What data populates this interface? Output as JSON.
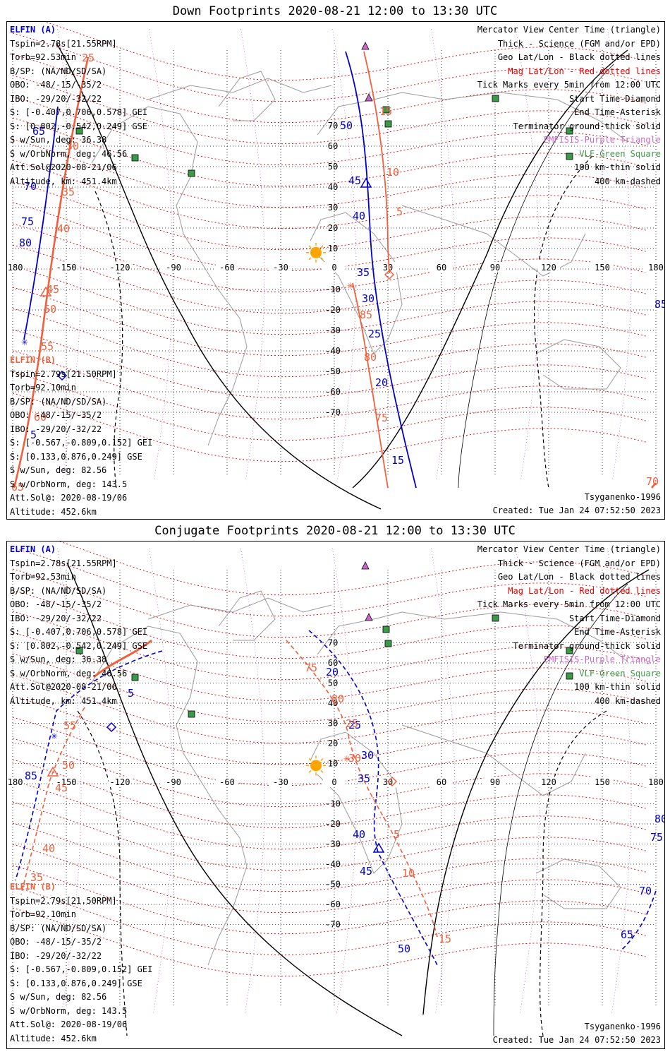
{
  "colors": {
    "elfin_a": "#0000cc",
    "elfin_b": "#f0603c",
    "mag_grid": "#dd0000",
    "geo_grid": "#000000",
    "terminator": "#000000",
    "emfisis": "#cc66cc",
    "vlf": "#3a9a4a",
    "sun": "#ffa500",
    "coast": "#9a9a9a"
  },
  "legend": {
    "view": "Mercator View Center Time (triangle)",
    "thick": "Thick - Science (FGM and/or EPD)",
    "geo": "Geo Lat/Lon - Black dotted lines",
    "mag": "Mag Lat/Lon - Red dotted lines",
    "ticks": "Tick Marks every 5min from 12:00 UTC",
    "start": "Start Time-Diamond",
    "end": "End Time-Asterisk",
    "terminator": "Terminator ground-thick solid",
    "emfisis": "EMFISIS-Purple Triangle",
    "vlf": "VLF-Green Square",
    "km100": "100 km-thin solid",
    "km400": "400 km-dashed"
  },
  "elfin_a": {
    "name": "ELFIN (A)",
    "lines": [
      "Tspin=2.78s[21.55RPM]",
      "Torb=92.53min",
      "B/SP: (NA/ND/SD/SA)",
      "OBO: -48/-15/-35/2",
      "IBO: -29/20/-32/22",
      "S: [-0.407,0.706,0.578] GEI",
      "S: [0.802,-0.542,0.249] GSE",
      "S w/Sun, deg: 36.38",
      "S w/OrbNorm, deg: 46.56",
      "Att.Sol@2020-08-21/06",
      "Altitude, km: 451.4km"
    ]
  },
  "elfin_b": {
    "name": "ELFIN (B)",
    "lines": [
      "Tspin=2.79s[21.50RPM]",
      "Torb=92.10min",
      "B/SP: (NA/ND/SD/SA)",
      "OBO: -48/-15/-35/2",
      "IBO: -29/20/-32/22",
      "S: [-0.567,-0.809,0.152] GEI",
      "S: [0.133,0.876,0.249] GSE",
      "S w/Sun, deg: 82.56",
      "S w/OrbNorm, deg: 143.5",
      "Att.Sol@: 2020-08-19/06",
      "Altitude: 452.6km"
    ]
  },
  "model": "Tsyganenko-1996",
  "created": "Created: Tue Jan 24 07:52:50 2023",
  "axes": {
    "lon_ticks": [
      "-180",
      "-150",
      "-120",
      "-90",
      "-60",
      "-30",
      "0",
      "30",
      "60",
      "90",
      "120",
      "150",
      "180"
    ],
    "lat_ticks": [
      "70",
      "60",
      "50",
      "40",
      "30",
      "20",
      "10",
      "0",
      "-10",
      "-20",
      "-30",
      "-40",
      "-50",
      "-60",
      "-70"
    ]
  },
  "panels": [
    {
      "title": "Down Footprints 2020-08-21 12:00 to 13:30 UTC",
      "a_labels": [
        "50",
        "45",
        "40",
        "35",
        "30",
        "25",
        "20",
        "15",
        "65",
        "70",
        "75",
        "80",
        "5",
        "85"
      ],
      "b_labels": [
        "25",
        "30",
        "35",
        "40",
        "45",
        "50",
        "55",
        "60",
        "65",
        "15",
        "10",
        "5",
        "85",
        "80",
        "75",
        "70"
      ]
    },
    {
      "title": "Conjugate Footprints 2020-08-21 12:00 to 13:30 UTC",
      "a_labels": [
        "20",
        "25",
        "30",
        "35",
        "40",
        "45",
        "50",
        "85",
        "5",
        "80",
        "75",
        "70",
        "65"
      ],
      "b_labels": [
        "75",
        "80",
        "25",
        "55",
        "50",
        "45",
        "40",
        "35",
        "5",
        "10",
        "15",
        "30"
      ]
    }
  ]
}
